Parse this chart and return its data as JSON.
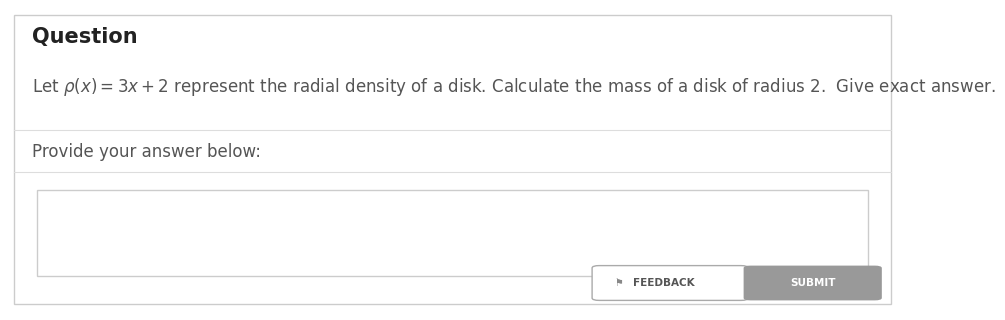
{
  "bg_color": "#ffffff",
  "border_color": "#cccccc",
  "title": "Question",
  "title_fontsize": 15,
  "title_color": "#222222",
  "question_line": "Let $\\rho(x) = 3x + 2$ represent the radial density of a disk. Calculate the mass of a disk of radius $2$.  Give exact answer.",
  "question_fontsize": 12,
  "question_color": "#555555",
  "provide_text": "Provide your answer below:",
  "provide_fontsize": 12,
  "provide_color": "#555555",
  "input_box_color": "#ffffff",
  "input_box_border": "#cccccc",
  "feedback_btn_text": "FEEDBACK",
  "feedback_btn_color": "#ffffff",
  "feedback_btn_border": "#aaaaaa",
  "feedback_btn_text_color": "#555555",
  "submit_btn_text": "SUBMIT",
  "submit_btn_color": "#999999",
  "submit_btn_text_color": "#ffffff",
  "divider_color": "#dddddd"
}
